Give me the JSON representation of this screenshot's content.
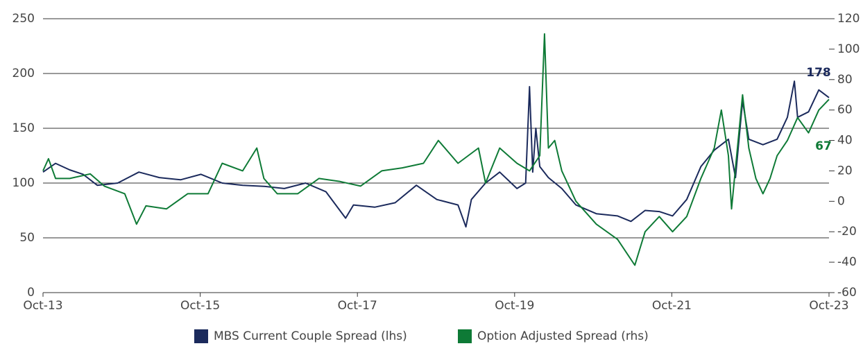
{
  "chart_data": {
    "type": "line",
    "annotations": [
      {
        "text": "178",
        "series": 0
      },
      {
        "text": "67",
        "series": 1
      }
    ],
    "xlim": [
      2013.75,
      2023.75
    ],
    "xticks": [
      {
        "value": 2013.75,
        "label": "Oct-13"
      },
      {
        "value": 2015.75,
        "label": "Oct-15"
      },
      {
        "value": 2017.75,
        "label": "Oct-17"
      },
      {
        "value": 2019.75,
        "label": "Oct-19"
      },
      {
        "value": 2021.75,
        "label": "Oct-21"
      },
      {
        "value": 2023.75,
        "label": "Oct-23"
      }
    ],
    "ylim": [
      0,
      250
    ],
    "yticks": [
      0,
      50,
      100,
      150,
      200,
      250
    ],
    "y2lim": [
      -60,
      120
    ],
    "y2ticks": [
      -60,
      -40,
      -20,
      0,
      20,
      40,
      60,
      80,
      100,
      120
    ],
    "grid": true,
    "legend": "bottom",
    "series": [
      {
        "name": "MBS Current Couple Spread (lhs)",
        "color": "#1b2a5c",
        "x": [
          2013.75,
          2013.91,
          2014.09,
          2014.26,
          2014.44,
          2014.7,
          2014.97,
          2015.23,
          2015.5,
          2015.76,
          2016.03,
          2016.29,
          2016.56,
          2016.82,
          2017.09,
          2017.35,
          2017.6,
          2017.7,
          2017.97,
          2018.23,
          2018.5,
          2018.76,
          2019.03,
          2019.13,
          2019.2,
          2019.38,
          2019.56,
          2019.78,
          2019.89,
          2019.94,
          2019.98,
          2020.02,
          2020.07,
          2020.18,
          2020.35,
          2020.53,
          2020.79,
          2021.06,
          2021.23,
          2021.41,
          2021.59,
          2021.76,
          2021.94,
          2022.12,
          2022.29,
          2022.47,
          2022.56,
          2022.65,
          2022.73,
          2022.91,
          2023.09,
          2023.22,
          2023.31,
          2023.35,
          2023.49,
          2023.62,
          2023.75
        ],
        "values": [
          110,
          118,
          112,
          108,
          98,
          100,
          110,
          105,
          103,
          108,
          100,
          98,
          97,
          95,
          100,
          92,
          68,
          80,
          78,
          82,
          98,
          85,
          80,
          60,
          85,
          100,
          110,
          95,
          100,
          188,
          110,
          150,
          115,
          105,
          95,
          80,
          72,
          70,
          65,
          75,
          74,
          70,
          85,
          115,
          130,
          140,
          105,
          175,
          140,
          135,
          140,
          160,
          193,
          160,
          165,
          185,
          178
        ]
      },
      {
        "name": "Option Adjusted Spread (rhs)",
        "color": "#0e7a36",
        "axis": "y2",
        "x": [
          2013.75,
          2013.82,
          2013.91,
          2014.09,
          2014.35,
          2014.53,
          2014.79,
          2014.94,
          2015.06,
          2015.32,
          2015.59,
          2015.85,
          2016.03,
          2016.29,
          2016.47,
          2016.56,
          2016.73,
          2016.99,
          2017.26,
          2017.53,
          2017.79,
          2018.06,
          2018.32,
          2018.59,
          2018.78,
          2019.03,
          2019.29,
          2019.38,
          2019.56,
          2019.78,
          2019.94,
          2020.07,
          2020.13,
          2020.18,
          2020.26,
          2020.35,
          2020.53,
          2020.79,
          2021.06,
          2021.28,
          2021.41,
          2021.59,
          2021.76,
          2021.94,
          2022.12,
          2022.29,
          2022.38,
          2022.47,
          2022.51,
          2022.65,
          2022.73,
          2022.82,
          2022.91,
          2023.0,
          2023.09,
          2023.22,
          2023.35,
          2023.49,
          2023.62,
          2023.75
        ],
        "values": [
          20,
          28,
          15,
          15,
          18,
          10,
          5,
          -15,
          -3,
          -5,
          5,
          5,
          25,
          20,
          35,
          15,
          5,
          5,
          15,
          13,
          10,
          20,
          22,
          25,
          40,
          25,
          35,
          12,
          35,
          25,
          20,
          30,
          110,
          35,
          40,
          20,
          0,
          -15,
          -25,
          -42,
          -20,
          -10,
          -20,
          -10,
          15,
          35,
          60,
          30,
          -5,
          70,
          35,
          15,
          5,
          15,
          30,
          40,
          55,
          45,
          60,
          67
        ]
      }
    ]
  }
}
